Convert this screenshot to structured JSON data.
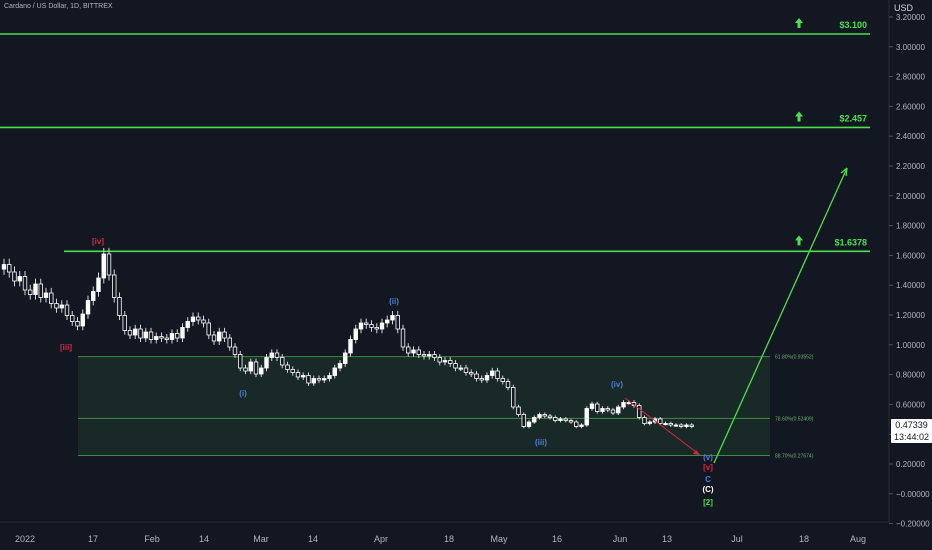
{
  "symbol": "Cardano / US Dollar, 1D, BITTREX",
  "axis_unit": "USD",
  "last_price": "0.47339",
  "countdown": "13:44:02",
  "chart_data": {
    "type": "candlestick",
    "title": "Cardano / US Dollar, 1D, BITTREX",
    "ylabel": "USD",
    "yscale": "log",
    "ylim": [
      -0.2,
      3.3
    ],
    "y_ticks": [
      "3.20000",
      "3.00000",
      "2.80000",
      "2.60000",
      "2.40000",
      "2.20000",
      "2.00000",
      "1.80000",
      "1.60000",
      "1.40000",
      "1.20000",
      "1.00000",
      "0.80000",
      "0.60000",
      "0.40000",
      "0.20000",
      "−0.00000",
      "−0.20000"
    ],
    "x_ticks": [
      "2022",
      "17",
      "Feb",
      "14",
      "Mar",
      "14",
      "Apr",
      "18",
      "May",
      "16",
      "Jun",
      "13",
      "Jul",
      "18",
      "Aug"
    ],
    "levels": [
      {
        "label": "$3.100",
        "value": 3.1,
        "color": "#4be04b"
      },
      {
        "label": "$2.457",
        "value": 2.457,
        "color": "#4be04b"
      },
      {
        "label": "$1.6378",
        "value": 1.6378,
        "color": "#4be04b"
      }
    ],
    "fib_zone": [
      {
        "label": "61.80%(0.93552)",
        "value": 0.93552
      },
      {
        "label": "78.60%(0.52409)",
        "value": 0.52409
      },
      {
        "label": "88.70%(0.27674)",
        "value": 0.27674
      }
    ],
    "wave_labels": [
      {
        "text": "[iii]",
        "color": "#e0243e"
      },
      {
        "text": "[iv]",
        "color": "#e0243e"
      },
      {
        "text": "(i)",
        "color": "#4a7fd4"
      },
      {
        "text": "(ii)",
        "color": "#4a7fd4"
      },
      {
        "text": "(iii)",
        "color": "#4a7fd4"
      },
      {
        "text": "(iv)",
        "color": "#4a7fd4"
      },
      {
        "text": "(v)",
        "color": "#4a7fd4"
      },
      {
        "text": "[v]",
        "color": "#e0243e"
      },
      {
        "text": "C",
        "color": "#4a7fd4"
      },
      {
        "text": "(C)",
        "color": "#ffffff"
      },
      {
        "text": "[2]",
        "color": "#4be04b"
      }
    ],
    "candles_close": [
      1.55,
      1.5,
      1.44,
      1.47,
      1.38,
      1.35,
      1.42,
      1.33,
      1.36,
      1.29,
      1.26,
      1.28,
      1.21,
      1.17,
      1.14,
      1.22,
      1.31,
      1.37,
      1.46,
      1.62,
      1.48,
      1.33,
      1.21,
      1.11,
      1.08,
      1.12,
      1.06,
      1.1,
      1.05,
      1.07,
      1.06,
      1.05,
      1.09,
      1.06,
      1.13,
      1.17,
      1.2,
      1.18,
      1.16,
      1.08,
      1.04,
      1.1,
      1.06,
      1.0,
      0.95,
      0.86,
      0.84,
      0.9,
      0.82,
      0.86,
      0.93,
      0.96,
      0.93,
      0.88,
      0.85,
      0.83,
      0.8,
      0.81,
      0.76,
      0.79,
      0.78,
      0.79,
      0.81,
      0.86,
      0.89,
      0.96,
      1.05,
      1.12,
      1.16,
      1.15,
      1.13,
      1.12,
      1.16,
      1.18,
      1.21,
      1.12,
      1.0,
      0.96,
      0.98,
      0.95,
      0.94,
      0.95,
      0.93,
      0.9,
      0.91,
      0.89,
      0.86,
      0.86,
      0.83,
      0.82,
      0.79,
      0.78,
      0.81,
      0.84,
      0.79,
      0.77,
      0.73,
      0.6,
      0.55,
      0.47,
      0.5,
      0.53,
      0.55,
      0.54,
      0.53,
      0.51,
      0.52,
      0.51,
      0.5,
      0.47,
      0.48,
      0.59,
      0.62,
      0.57,
      0.59,
      0.58,
      0.56,
      0.6,
      0.63,
      0.63,
      0.61,
      0.53,
      0.49,
      0.5,
      0.52,
      0.49,
      0.49,
      0.48,
      0.48,
      0.47,
      0.48,
      0.47
    ],
    "projection": {
      "from_label": "(C)",
      "to_level": "$1.6378"
    }
  }
}
